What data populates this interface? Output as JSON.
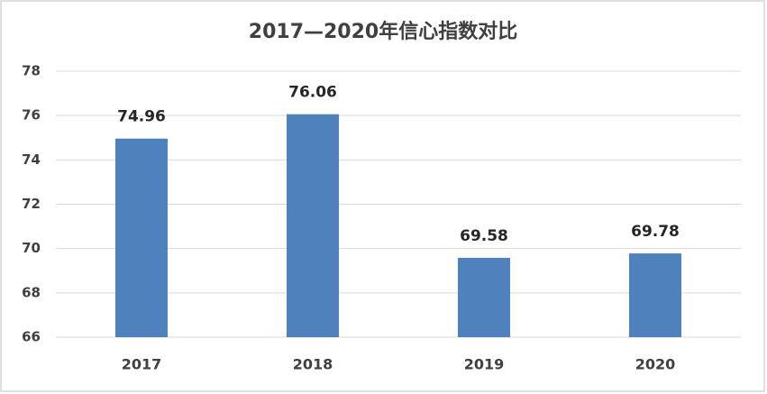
{
  "chart_data": {
    "type": "bar",
    "title": "2017—2020年信心指数对比",
    "categories": [
      "2017",
      "2018",
      "2019",
      "2020"
    ],
    "values": [
      74.96,
      76.06,
      69.58,
      69.78
    ],
    "color": "#4f81bd",
    "ylim": [
      66,
      78
    ],
    "yticks": [
      66,
      68,
      70,
      72,
      74,
      76,
      78
    ],
    "grid": true
  }
}
